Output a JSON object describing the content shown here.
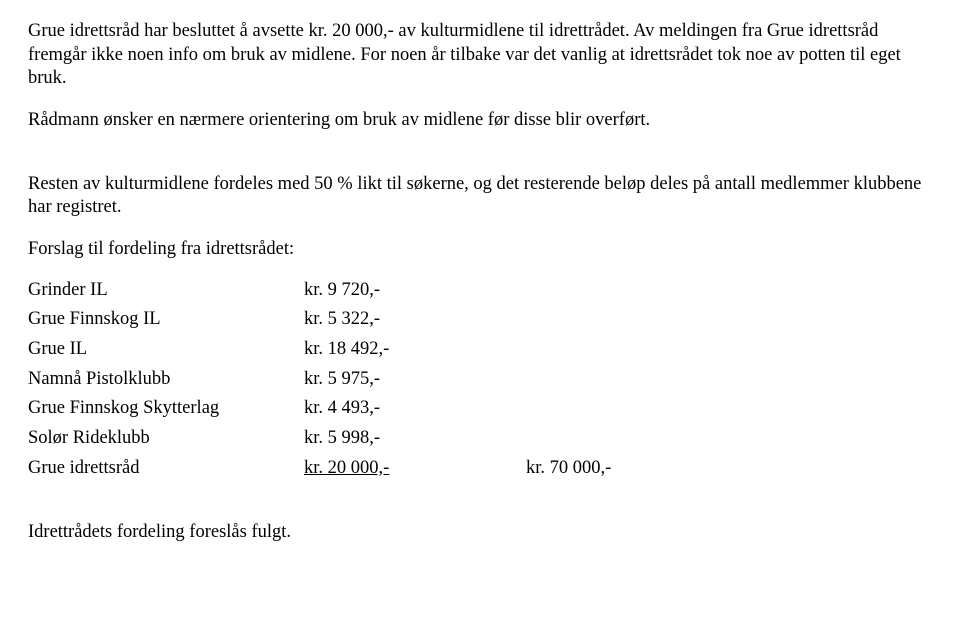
{
  "paragraphs": {
    "p1": "Grue idrettsråd har besluttet å avsette kr. 20 000,- av kulturmidlene til idrettrådet. Av meldingen fra Grue idrettsråd fremgår ikke noen info om bruk av midlene. For noen år tilbake var det vanlig at idrettsrådet tok noe av potten til eget bruk.",
    "p2": "Rådmann ønsker en nærmere orientering om bruk av midlene før disse blir overført.",
    "p3": "Resten av kulturmidlene fordeles med 50 % likt til søkerne, og det resterende beløp deles på antall medlemmer klubbene har registret.",
    "forslag_title": "Forslag til fordeling fra idrettsrådet:",
    "closing": "Idrettrådets fordeling foreslås fulgt."
  },
  "allocations": [
    {
      "name": "Grinder IL",
      "amount": "kr. 9 720,-",
      "extra": ""
    },
    {
      "name": "Grue Finnskog IL",
      "amount": "kr. 5 322,-",
      "extra": ""
    },
    {
      "name": "Grue IL",
      "amount": "kr. 18 492,-",
      "extra": ""
    },
    {
      "name": "Namnå Pistolklubb",
      "amount": "kr. 5 975,-",
      "extra": ""
    },
    {
      "name": "Grue Finnskog Skytterlag",
      "amount": "kr. 4 493,-",
      "extra": ""
    },
    {
      "name": "Solør Rideklubb",
      "amount": "kr. 5 998,-",
      "extra": ""
    },
    {
      "name": "Grue idrettsråd",
      "amount": "kr. 20 000,-",
      "extra": "kr. 70 000,-"
    }
  ]
}
